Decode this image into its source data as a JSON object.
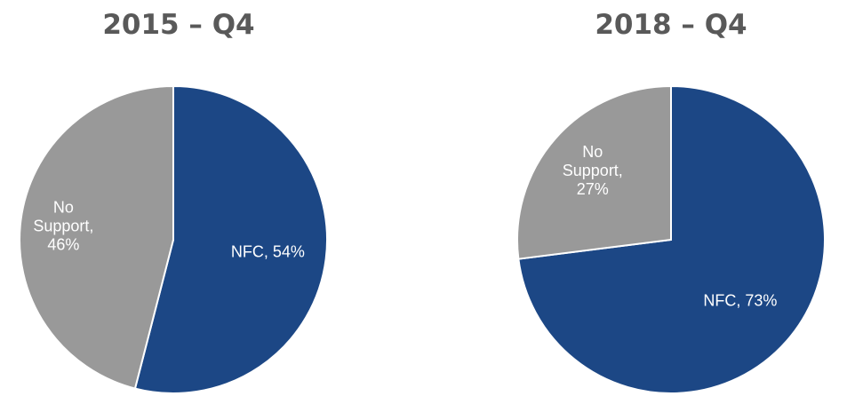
{
  "chart_data": [
    {
      "type": "pie",
      "title": "2015 – Q4",
      "slices": [
        {
          "name": "NFC",
          "value": 54,
          "color": "#1c4785",
          "label_lines": [
            "NFC, 54%"
          ]
        },
        {
          "name": "No Support",
          "value": 46,
          "color": "#999999",
          "label_lines": [
            "No",
            "Support,",
            "46%"
          ]
        }
      ]
    },
    {
      "type": "pie",
      "title": "2018 – Q4",
      "slices": [
        {
          "name": "NFC",
          "value": 73,
          "color": "#1c4785",
          "label_lines": [
            "NFC, 73%"
          ]
        },
        {
          "name": "No Support",
          "value": 27,
          "color": "#999999",
          "label_lines": [
            "No",
            "Support,",
            "27%"
          ]
        }
      ]
    }
  ]
}
